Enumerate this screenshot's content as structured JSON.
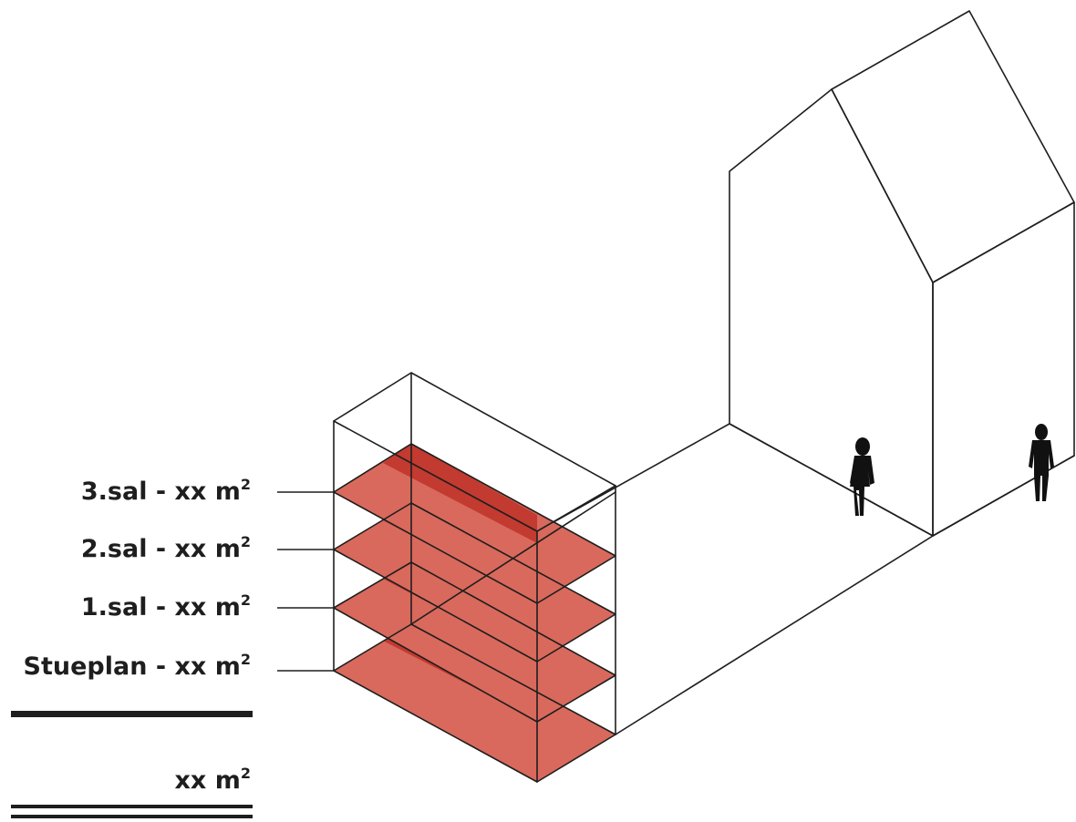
{
  "floors": [
    {
      "name": "3.sal",
      "sep": " - ",
      "area": "xx m",
      "sup": "2"
    },
    {
      "name": "2.sal",
      "sep": " - ",
      "area": "xx m",
      "sup": "2"
    },
    {
      "name": "1.sal",
      "sep": " - ",
      "area": "xx m",
      "sup": "2"
    },
    {
      "name": "Stueplan",
      "sep": " - ",
      "area": "xx m",
      "sup": "2"
    }
  ],
  "total": {
    "area": "xx m",
    "sup": "2"
  },
  "colors": {
    "floor_fill": "#d9695c",
    "floor_overlap": "#c23a30",
    "line": "#1e1e1e",
    "person": "#111111"
  },
  "icons": {
    "person_left": "woman-silhouette-icon",
    "person_right": "man-silhouette-icon"
  }
}
